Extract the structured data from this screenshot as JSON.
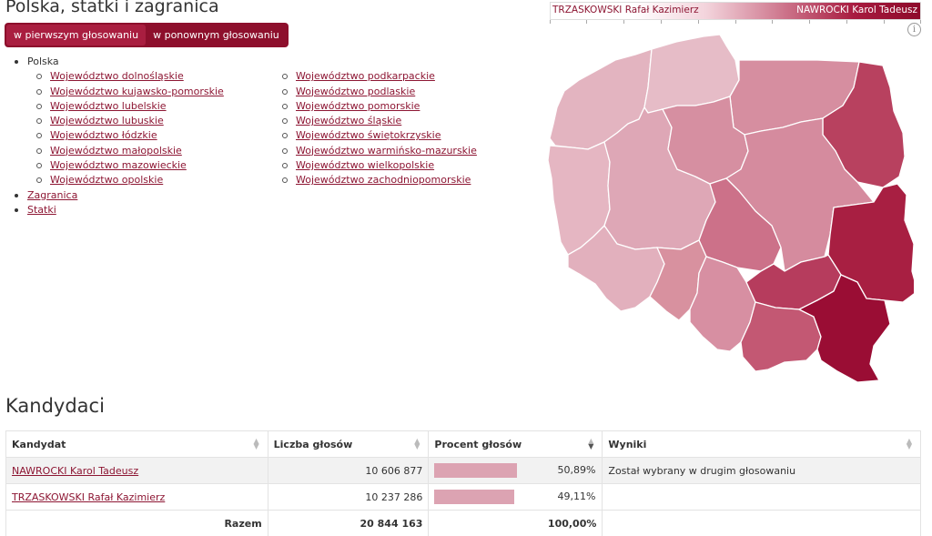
{
  "page": {
    "title": "Polska, statki i zagranica"
  },
  "round_tabs": [
    {
      "label": "w pierwszym głosowaniu",
      "active": true
    },
    {
      "label": "w ponownym głosowaniu",
      "active": false
    }
  ],
  "legend": {
    "left_candidate": "TRZASKOWSKI Rafał Kazimierz",
    "right_candidate": "NAWROCKI Karol Tadeusz",
    "low_color": "#ffffff",
    "high_color": "#8d0a2a",
    "info_icon": "info-icon"
  },
  "nav": {
    "polska": "Polska",
    "col1": [
      "Województwo dolnośląskie",
      "Województwo kujawsko-pomorskie",
      "Województwo lubelskie",
      "Województwo lubuskie",
      "Województwo łódzkie",
      "Województwo małopolskie",
      "Województwo mazowieckie",
      "Województwo opolskie"
    ],
    "col2": [
      "Województwo podkarpackie",
      "Województwo podlaskie",
      "Województwo pomorskie",
      "Województwo śląskie",
      "Województwo świętokrzyskie",
      "Województwo warmińsko-mazurskie",
      "Województwo wielkopolskie",
      "Województwo zachodniopomorskie"
    ],
    "zagranica": "Zagranica",
    "statki": "Statki"
  },
  "map": {
    "colors": {
      "zachodniopomorskie": "#e3b4c0",
      "pomorskie": "#e6bcc7",
      "warminsko_mazurskie": "#d68ea0",
      "podlaskie": "#b8415f",
      "lubuskie": "#e5b6c2",
      "wielkopolskie": "#dea7b6",
      "kujawsko_pomorskie": "#d68fa1",
      "mazowieckie": "#d58b9e",
      "lodzkie": "#cc7189",
      "lubelskie": "#a81f42",
      "dolnoslaskie": "#e2b0bd",
      "opolskie": "#d8919f",
      "slaskie": "#d78fa2",
      "swietokrzyskie": "#b63c5d",
      "malopolskie": "#c35873",
      "podkarpackie": "#9a0d34"
    }
  },
  "candidates_section": {
    "title": "Kandydaci",
    "headers": [
      "Kandydat",
      "Liczba głosów",
      "Procent głosów",
      "Wyniki"
    ],
    "rows": [
      {
        "name": "NAWROCKI Karol Tadeusz",
        "votes": "10 606 877",
        "percent_label": "50,89%",
        "percent": 50.89,
        "result": "Został wybrany w drugim głosowaniu"
      },
      {
        "name": "TRZASKOWSKI Rafał Kazimierz",
        "votes": "10 237 286",
        "percent_label": "49,11%",
        "percent": 49.11,
        "result": ""
      }
    ],
    "total": {
      "label": "Razem",
      "votes": "20 844 163",
      "percent_label": "100,00%"
    },
    "bar_color": "#dca3b2"
  }
}
